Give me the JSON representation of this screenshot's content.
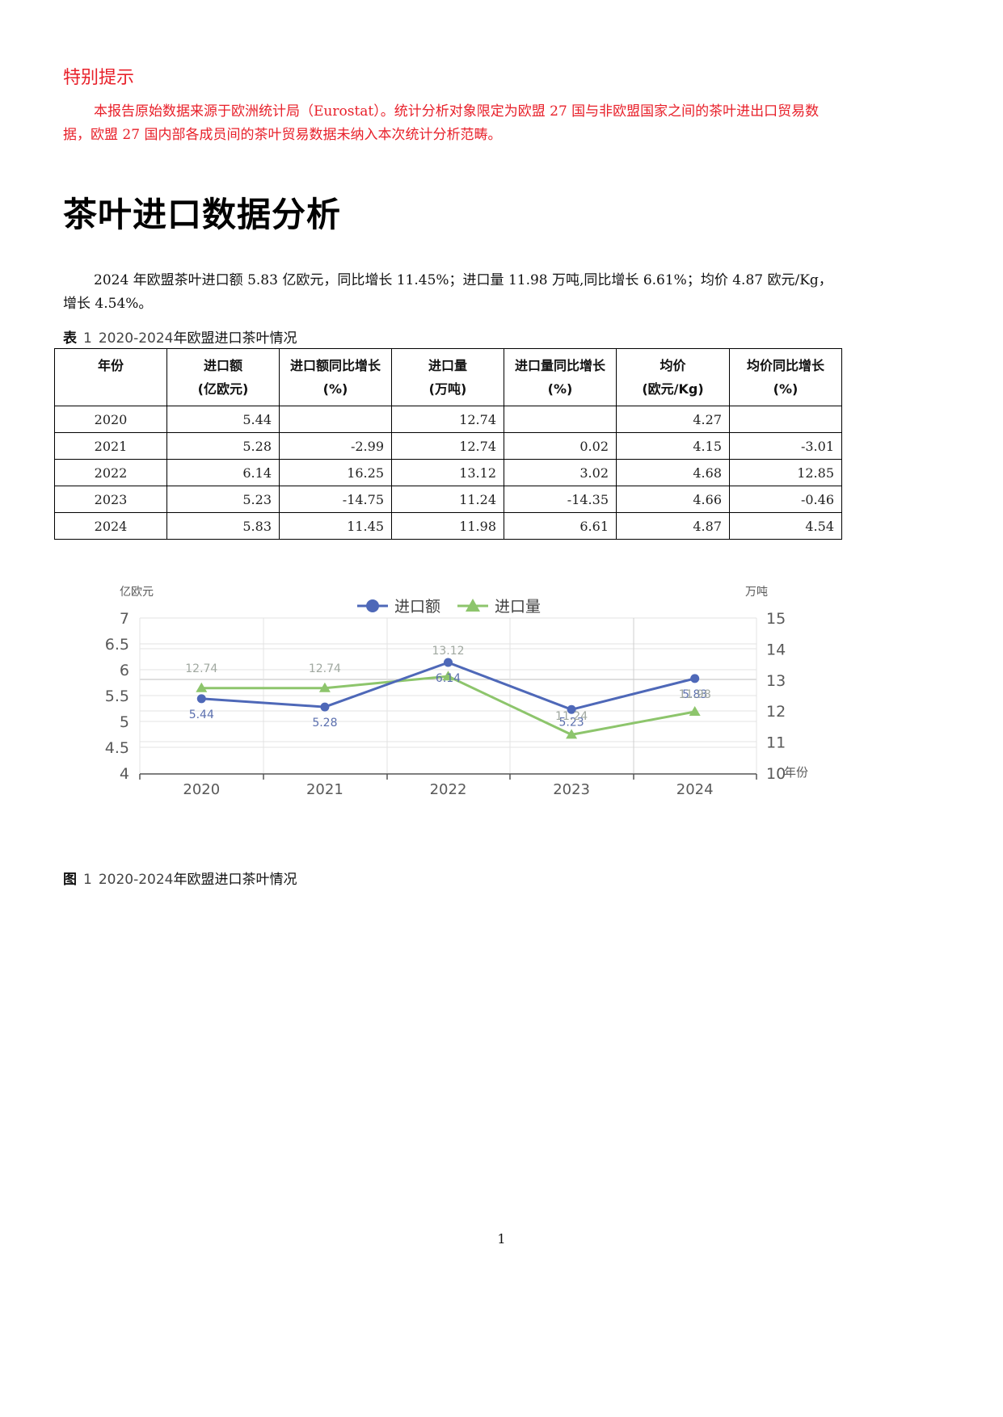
{
  "notice": {
    "title": "特别提示",
    "body": "本报告原始数据来源于欧洲统计局（Eurostat）。统计分析对象限定为欧盟 27 国与非欧盟国家之间的茶叶进出口贸易数据，欧盟 27 国内部各成员间的茶叶贸易数据未纳入本次统计分析范畴。",
    "color": "#e8202a"
  },
  "section": {
    "title": "茶叶进口数据分析",
    "summary": "2024 年欧盟茶叶进口额 5.83 亿欧元，同比增长 11.45%；进口量 11.98 万吨,同比增长 6.61%；均价 4.87 欧元/Kg，增长 4.54%。"
  },
  "table": {
    "caption_label": "表",
    "caption_num": "1",
    "caption_range": "2020-2024",
    "caption_text": "年欧盟进口茶叶情况",
    "headers": [
      {
        "label": "年份",
        "unit": ""
      },
      {
        "label": "进口额",
        "unit": "(亿欧元)"
      },
      {
        "label": "进口额同比增长",
        "unit": "(%)"
      },
      {
        "label": "进口量",
        "unit": "(万吨)"
      },
      {
        "label": "进口量同比增长",
        "unit": "(%)"
      },
      {
        "label": "均价",
        "unit": "(欧元/Kg)"
      },
      {
        "label": "均价同比增长",
        "unit": "(%)"
      }
    ],
    "rows": [
      [
        "2020",
        "5.44",
        "",
        "12.74",
        "",
        "4.27",
        ""
      ],
      [
        "2021",
        "5.28",
        "-2.99",
        "12.74",
        "0.02",
        "4.15",
        "-3.01"
      ],
      [
        "2022",
        "6.14",
        "16.25",
        "13.12",
        "3.02",
        "4.68",
        "12.85"
      ],
      [
        "2023",
        "5.23",
        "-14.75",
        "11.24",
        "-14.35",
        "4.66",
        "-0.46"
      ],
      [
        "2024",
        "5.83",
        "11.45",
        "11.98",
        "6.61",
        "4.87",
        "4.54"
      ]
    ]
  },
  "figure": {
    "caption_label": "图",
    "caption_num": "1",
    "caption_range": "2020-2024",
    "caption_text": "年欧盟进口茶叶情况"
  },
  "chart_data": {
    "type": "line",
    "title": "",
    "categories": [
      "2020",
      "2021",
      "2022",
      "2023",
      "2024"
    ],
    "xlabel": "年份",
    "ylabel": "亿欧元",
    "ylabel_right": "万吨",
    "ylim": [
      4,
      7
    ],
    "ylim_right": [
      10,
      15
    ],
    "yticks": [
      "4",
      "4.5",
      "5",
      "5.5",
      "6",
      "6.5",
      "7"
    ],
    "yticks_right": [
      "10",
      "11",
      "12",
      "13",
      "14",
      "15"
    ],
    "legend_position": "top",
    "grid": true,
    "series": [
      {
        "name": "进口额",
        "axis": "left",
        "marker": "circle",
        "color": "#4e68b8",
        "values": [
          5.44,
          5.28,
          6.14,
          5.23,
          5.83
        ],
        "labels": [
          "5.44",
          "5.28",
          "6.14",
          "5.23",
          "5.83"
        ]
      },
      {
        "name": "进口量",
        "axis": "right",
        "marker": "triangle",
        "color": "#8dc56c",
        "values": [
          12.74,
          12.74,
          13.12,
          11.24,
          11.98
        ],
        "labels": [
          "12.74",
          "12.74",
          "13.12",
          "11.24",
          "11.98"
        ]
      }
    ]
  },
  "page": {
    "number": "1"
  }
}
